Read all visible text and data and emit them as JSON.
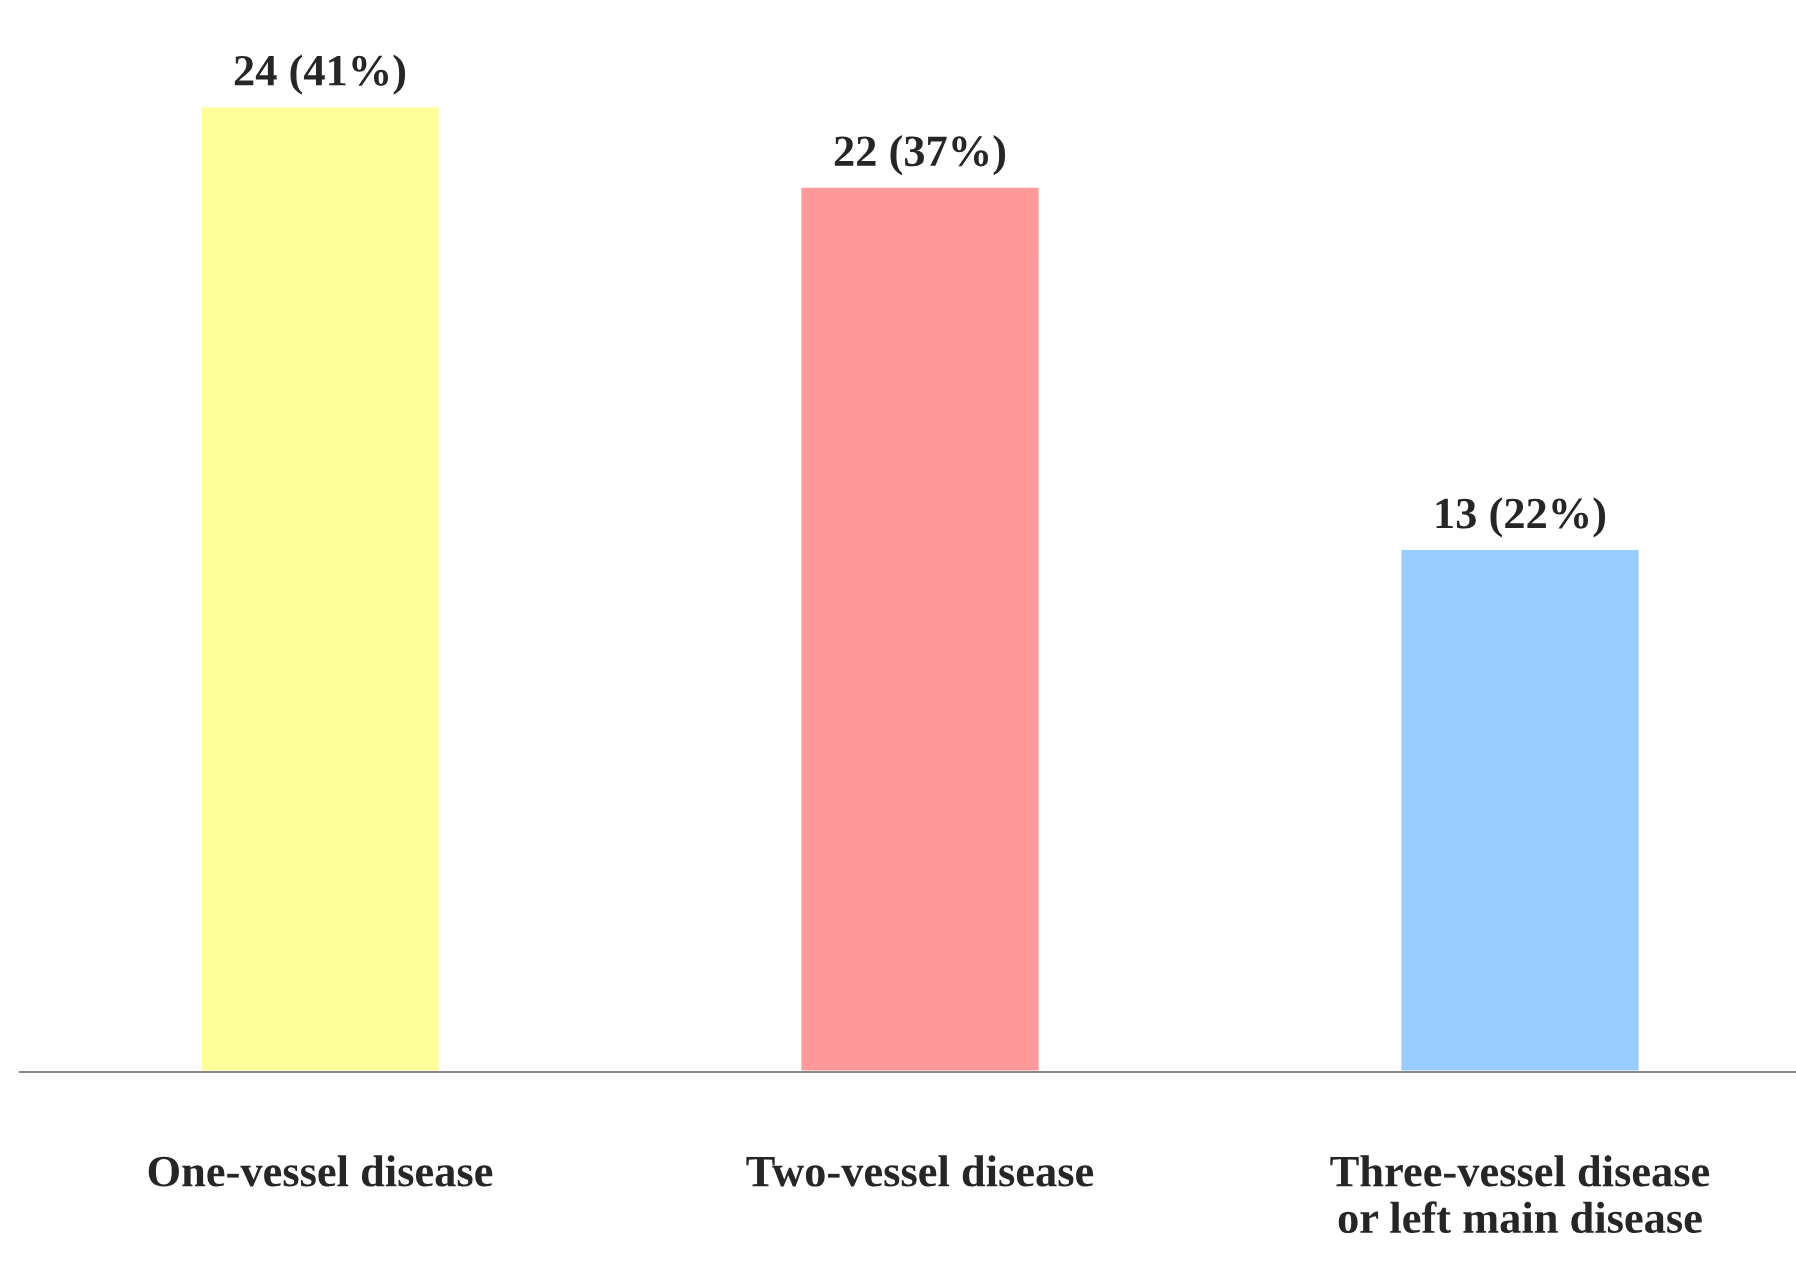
{
  "chart_data": {
    "type": "bar",
    "categories": [
      "One-vessel disease",
      "Two-vessel disease",
      "Three-vessel disease\nor left main disease"
    ],
    "values": [
      24,
      22,
      13
    ],
    "colors": [
      "#ffff99",
      "#ff9999",
      "#99ccff"
    ],
    "value_labels": [
      "24 (41%)",
      "22 (37%)",
      "13 (22%)"
    ],
    "tick_labels": "x",
    "grid": false
  }
}
